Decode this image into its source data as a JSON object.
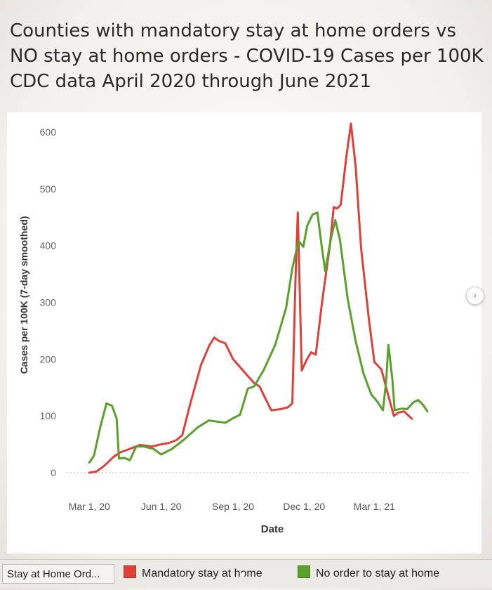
{
  "chart_data": {
    "type": "line",
    "title_lines": [
      "Counties with mandatory stay at home orders vs",
      "NO stay at home orders - COVID-19 Cases per 100K",
      "CDC data April 2020 through June 2021"
    ],
    "xlabel": "Date",
    "ylabel": "Cases per 100K (7-day smoothed)",
    "x_ticks": [
      "Mar 1, 20",
      "Jun 1, 20",
      "Sep 1, 20",
      "Dec 1, 20",
      "Mar 1, 21"
    ],
    "y_ticks": [
      0,
      100,
      200,
      300,
      400,
      500,
      600
    ],
    "ylim": [
      0,
      600
    ],
    "xlim": [
      "2020-02-01",
      "2021-06-30"
    ],
    "grid": false,
    "legend_position": "bottom",
    "series": [
      {
        "name": "Mandatory stay at home",
        "color": "#e0403a",
        "points": [
          [
            "2020-03-01",
            0
          ],
          [
            "2020-03-10",
            2
          ],
          [
            "2020-03-20",
            12
          ],
          [
            "2020-04-01",
            28
          ],
          [
            "2020-04-10",
            36
          ],
          [
            "2020-04-22",
            42
          ],
          [
            "2020-05-05",
            49
          ],
          [
            "2020-05-20",
            46
          ],
          [
            "2020-06-01",
            50
          ],
          [
            "2020-06-10",
            52
          ],
          [
            "2020-06-20",
            57
          ],
          [
            "2020-06-28",
            66
          ],
          [
            "2020-07-08",
            120
          ],
          [
            "2020-07-22",
            190
          ],
          [
            "2020-08-02",
            225
          ],
          [
            "2020-08-08",
            238
          ],
          [
            "2020-08-14",
            232
          ],
          [
            "2020-08-22",
            228
          ],
          [
            "2020-09-01",
            200
          ],
          [
            "2020-09-15",
            178
          ],
          [
            "2020-09-28",
            158
          ],
          [
            "2020-10-05",
            152
          ],
          [
            "2020-10-12",
            132
          ],
          [
            "2020-10-20",
            110
          ],
          [
            "2020-11-01",
            112
          ],
          [
            "2020-11-10",
            115
          ],
          [
            "2020-11-16",
            122
          ],
          [
            "2020-11-20",
            340
          ],
          [
            "2020-11-23",
            458
          ],
          [
            "2020-11-28",
            180
          ],
          [
            "2020-12-04",
            198
          ],
          [
            "2020-12-10",
            212
          ],
          [
            "2020-12-16",
            208
          ],
          [
            "2020-12-24",
            300
          ],
          [
            "2021-01-03",
            400
          ],
          [
            "2021-01-08",
            468
          ],
          [
            "2021-01-12",
            465
          ],
          [
            "2021-01-17",
            472
          ],
          [
            "2021-01-24",
            555
          ],
          [
            "2021-01-30",
            615
          ],
          [
            "2021-02-05",
            540
          ],
          [
            "2021-02-12",
            395
          ],
          [
            "2021-02-22",
            270
          ],
          [
            "2021-03-01",
            195
          ],
          [
            "2021-03-10",
            182
          ],
          [
            "2021-03-18",
            140
          ],
          [
            "2021-03-26",
            100
          ],
          [
            "2021-04-01",
            106
          ],
          [
            "2021-04-08",
            108
          ],
          [
            "2021-04-18",
            95
          ]
        ]
      },
      {
        "name": "No order to stay at home",
        "color": "#5aa02c",
        "points": [
          [
            "2020-03-01",
            18
          ],
          [
            "2020-03-07",
            30
          ],
          [
            "2020-03-15",
            80
          ],
          [
            "2020-03-23",
            122
          ],
          [
            "2020-03-30",
            118
          ],
          [
            "2020-04-05",
            95
          ],
          [
            "2020-04-08",
            25
          ],
          [
            "2020-04-15",
            26
          ],
          [
            "2020-04-22",
            22
          ],
          [
            "2020-04-30",
            46
          ],
          [
            "2020-05-10",
            46
          ],
          [
            "2020-05-22",
            42
          ],
          [
            "2020-06-01",
            32
          ],
          [
            "2020-06-15",
            42
          ],
          [
            "2020-06-30",
            58
          ],
          [
            "2020-07-18",
            80
          ],
          [
            "2020-08-01",
            92
          ],
          [
            "2020-08-12",
            90
          ],
          [
            "2020-08-22",
            88
          ],
          [
            "2020-09-01",
            96
          ],
          [
            "2020-09-10",
            102
          ],
          [
            "2020-09-20",
            148
          ],
          [
            "2020-09-28",
            152
          ],
          [
            "2020-10-10",
            180
          ],
          [
            "2020-10-25",
            225
          ],
          [
            "2020-11-08",
            290
          ],
          [
            "2020-11-16",
            360
          ],
          [
            "2020-11-24",
            408
          ],
          [
            "2020-11-30",
            398
          ],
          [
            "2020-12-05",
            435
          ],
          [
            "2020-12-12",
            455
          ],
          [
            "2020-12-18",
            458
          ],
          [
            "2020-12-24",
            395
          ],
          [
            "2020-12-28",
            355
          ],
          [
            "2021-01-04",
            410
          ],
          [
            "2021-01-10",
            445
          ],
          [
            "2021-01-16",
            410
          ],
          [
            "2021-01-26",
            305
          ],
          [
            "2021-02-05",
            232
          ],
          [
            "2021-02-15",
            175
          ],
          [
            "2021-02-25",
            138
          ],
          [
            "2021-03-05",
            125
          ],
          [
            "2021-03-12",
            110
          ],
          [
            "2021-03-16",
            160
          ],
          [
            "2021-03-19",
            225
          ],
          [
            "2021-03-24",
            165
          ],
          [
            "2021-03-27",
            110
          ],
          [
            "2021-04-05",
            113
          ],
          [
            "2021-04-12",
            112
          ],
          [
            "2021-04-20",
            124
          ],
          [
            "2021-04-26",
            128
          ],
          [
            "2021-05-02",
            120
          ],
          [
            "2021-05-08",
            108
          ]
        ]
      }
    ]
  },
  "legend": {
    "title": "Stay at Home Ord...",
    "items": [
      {
        "label": "Mandatory stay at home",
        "color": "#e0403a"
      },
      {
        "label": "No order to stay at home",
        "color": "#5aa02c"
      }
    ]
  },
  "nav": {
    "next_icon": "chevron-right-icon",
    "glyph": "›"
  }
}
